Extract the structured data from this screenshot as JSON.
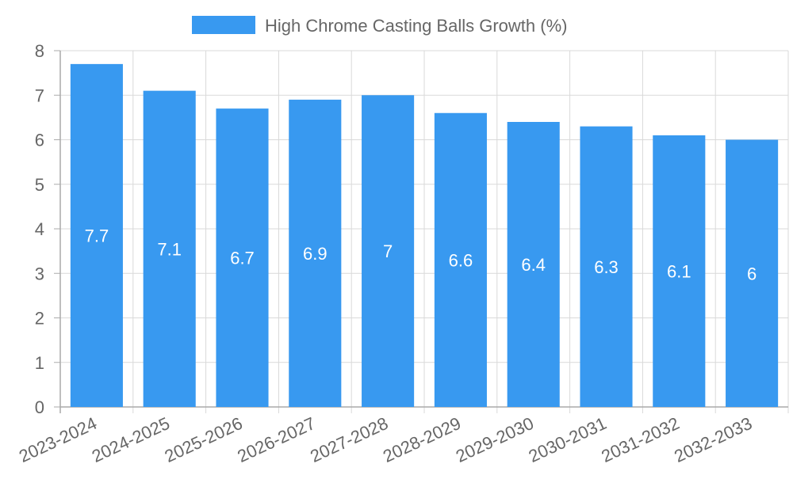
{
  "colors": {
    "bar": "#3899f0",
    "grid": "#d9d9d9",
    "axis": "#aaaaaa",
    "tick_text": "#666666",
    "data_label": "#ffffff"
  },
  "chart_data": {
    "type": "bar",
    "title": "",
    "legend": [
      "High Chrome Casting Balls Growth (%)"
    ],
    "legend_position": "top-center",
    "categories": [
      "2023-2024",
      "2024-2025",
      "2025-2026",
      "2026-2027",
      "2027-2028",
      "2028-2029",
      "2029-2030",
      "2030-2031",
      "2031-2032",
      "2032-2033"
    ],
    "series": [
      {
        "name": "High Chrome Casting Balls Growth (%)",
        "values": [
          7.7,
          7.1,
          6.7,
          6.9,
          7,
          6.6,
          6.4,
          6.3,
          6.1,
          6
        ]
      }
    ],
    "data_labels": [
      "7.7",
      "7.1",
      "6.7",
      "6.9",
      "7",
      "6.6",
      "6.4",
      "6.3",
      "6.1",
      "6"
    ],
    "y_ticks": [
      "0",
      "1",
      "2",
      "3",
      "4",
      "5",
      "6",
      "7",
      "8"
    ],
    "xlabel": "",
    "ylabel": "",
    "ylim": [
      0,
      8
    ],
    "grid": true
  }
}
